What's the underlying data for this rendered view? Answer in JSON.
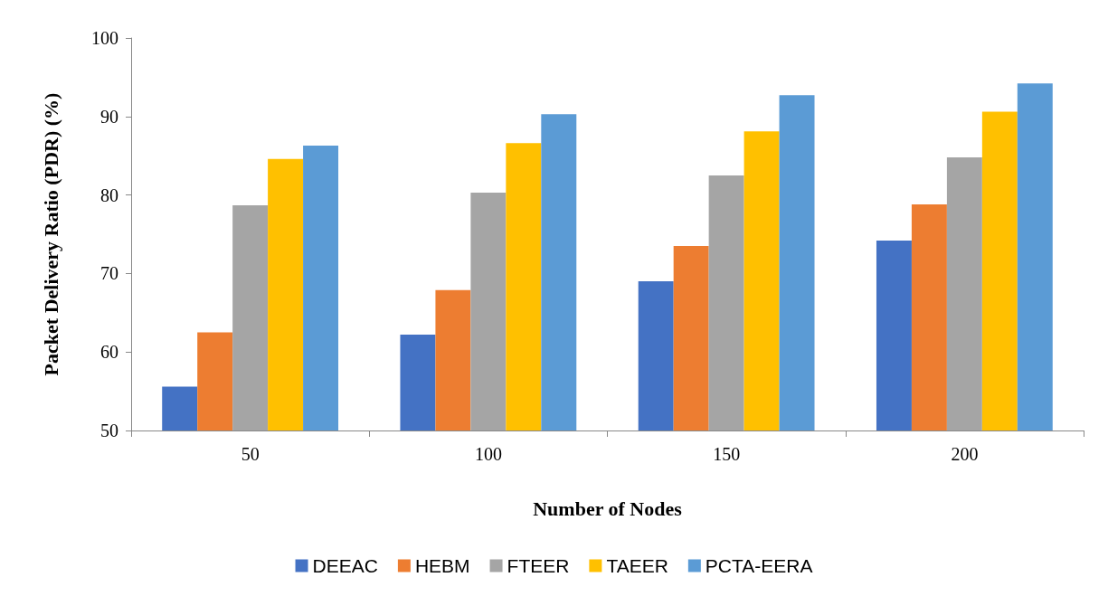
{
  "chart_data": {
    "type": "bar",
    "xlabel": "Number of Nodes",
    "ylabel": "Packet Delivery Ratio (PDR) (%)",
    "categories": [
      "50",
      "100",
      "150",
      "200"
    ],
    "series": [
      {
        "name": "DEEAC",
        "color": "#4472c4",
        "values": [
          55.6,
          62.2,
          69.0,
          74.2
        ]
      },
      {
        "name": "HEBM",
        "color": "#ed7d31",
        "values": [
          62.5,
          67.9,
          73.5,
          78.8
        ]
      },
      {
        "name": "FTEER",
        "color": "#a5a5a5",
        "values": [
          78.7,
          80.3,
          82.5,
          84.8
        ]
      },
      {
        "name": "TAEER",
        "color": "#ffc000",
        "values": [
          84.6,
          86.6,
          88.1,
          90.6
        ]
      },
      {
        "name": "PCTA-EERA",
        "color": "#5b9bd5",
        "values": [
          86.3,
          90.3,
          92.7,
          94.2
        ]
      }
    ],
    "ylim": [
      50,
      100
    ],
    "yticks": [
      50,
      60,
      70,
      80,
      90,
      100
    ],
    "grid": false,
    "legend": "bottom"
  }
}
